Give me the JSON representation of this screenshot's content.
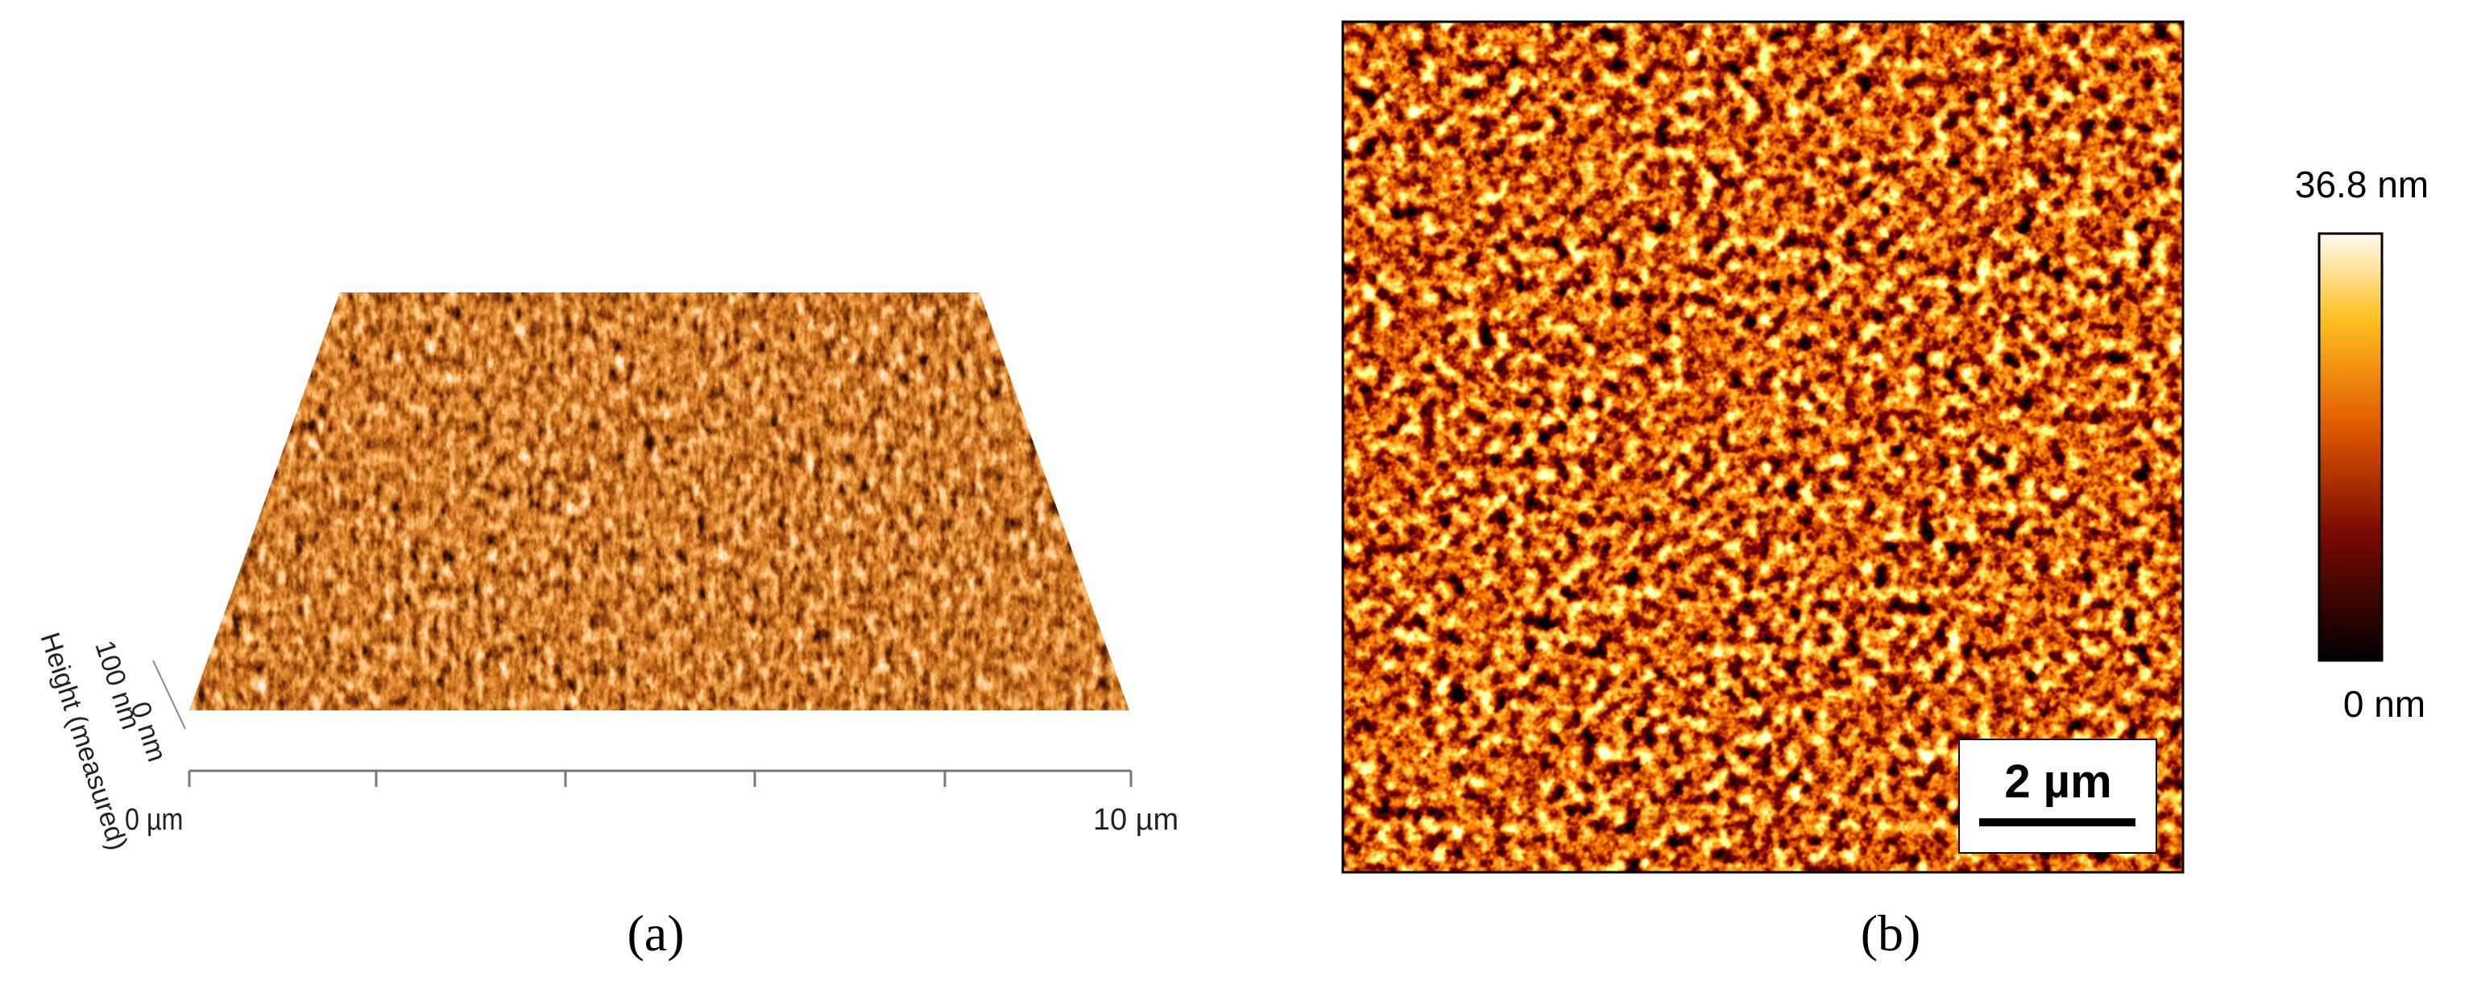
{
  "panel_a": {
    "caption": "(a)",
    "x_start_label": "0 µm",
    "x_end_label": "10 µm",
    "z_label": "Height (measured)",
    "z_tick_top": "100 nm",
    "z_tick_bottom": "0 nm"
  },
  "panel_b": {
    "caption": "(b)",
    "scale_bar": "2 µm",
    "colorbar_max": "36.8 nm",
    "colorbar_min": "0 nm"
  }
}
